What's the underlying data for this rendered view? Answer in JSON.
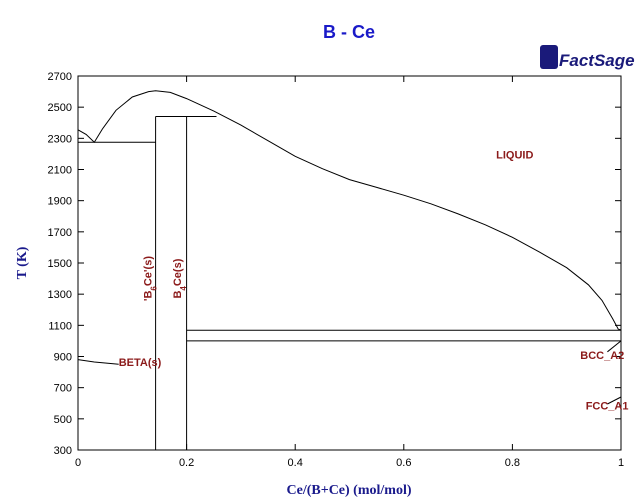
{
  "chart_data": {
    "type": "line",
    "title": "B - Ce",
    "xlabel": "Ce/(B+Ce) (mol/mol)",
    "ylabel": "T (K)",
    "xlim": [
      0,
      1
    ],
    "ylim": [
      300,
      2700
    ],
    "x_ticks": [
      "0",
      "0.2",
      "0.4",
      "0.6",
      "0.8",
      "1"
    ],
    "y_ticks": [
      "300",
      "500",
      "700",
      "900",
      "1100",
      "1300",
      "1500",
      "1700",
      "1900",
      "2100",
      "2300",
      "2500",
      "2700"
    ],
    "x_tick_values": [
      0,
      0.2,
      0.4,
      0.6,
      0.8,
      1
    ],
    "y_tick_values": [
      300,
      500,
      700,
      900,
      1100,
      1300,
      1500,
      1700,
      1900,
      2100,
      2300,
      2500,
      2700
    ],
    "logo": "FactSage",
    "phase_labels": [
      {
        "text": "LIQUID",
        "x": 0.77,
        "T": 2170,
        "angle": 0
      },
      {
        "text": "'B",
        "x": 0.135,
        "T": 1400,
        "angle": -90,
        "subscript": "6",
        "rest": "Ce'(s)"
      },
      {
        "text": "B",
        "x": 0.19,
        "T": 1400,
        "angle": -90,
        "subscript": "4",
        "rest": "Ce(s)"
      },
      {
        "text": "BETA(s)",
        "x": 0.075,
        "T": 840,
        "angle": 0
      },
      {
        "text": "BCC_A2",
        "x": 0.925,
        "T": 885,
        "angle": 0
      },
      {
        "text": "FCC_A1",
        "x": 0.935,
        "T": 560,
        "angle": 0
      }
    ],
    "series": [
      {
        "points": [
          [
            0.0,
            2355
          ],
          [
            0.015,
            2325
          ],
          [
            0.03,
            2275
          ],
          [
            0.045,
            2360
          ],
          [
            0.07,
            2480
          ],
          [
            0.1,
            2565
          ],
          [
            0.13,
            2600
          ],
          [
            0.143,
            2605
          ],
          [
            0.17,
            2595
          ],
          [
            0.2,
            2555
          ],
          [
            0.25,
            2475
          ],
          [
            0.3,
            2385
          ],
          [
            0.35,
            2285
          ],
          [
            0.4,
            2185
          ],
          [
            0.45,
            2105
          ],
          [
            0.5,
            2035
          ],
          [
            0.55,
            1985
          ],
          [
            0.6,
            1935
          ],
          [
            0.65,
            1880
          ],
          [
            0.7,
            1815
          ],
          [
            0.75,
            1745
          ],
          [
            0.8,
            1665
          ],
          [
            0.85,
            1570
          ],
          [
            0.9,
            1470
          ],
          [
            0.94,
            1360
          ],
          [
            0.965,
            1260
          ],
          [
            0.985,
            1140
          ],
          [
            0.995,
            1075
          ],
          [
            1.0,
            1071
          ]
        ]
      },
      {
        "points": [
          [
            0.0,
            2275
          ],
          [
            0.143,
            2275
          ]
        ]
      },
      {
        "points": [
          [
            0.143,
            2440
          ],
          [
            0.255,
            2440
          ]
        ]
      },
      {
        "points": [
          [
            0.143,
            300
          ],
          [
            0.143,
            2440
          ]
        ]
      },
      {
        "points": [
          [
            0.2,
            300
          ],
          [
            0.2,
            2440
          ]
        ]
      },
      {
        "points": [
          [
            0.2,
            1068
          ],
          [
            1.0,
            1068
          ]
        ]
      },
      {
        "points": [
          [
            0.2,
            1000
          ],
          [
            1.0,
            1000
          ]
        ]
      },
      {
        "points": [
          [
            0.0,
            880
          ],
          [
            0.03,
            865
          ],
          [
            0.075,
            850
          ]
        ]
      },
      {
        "points": [
          [
            0.975,
            930
          ],
          [
            1.0,
            1000
          ]
        ]
      },
      {
        "points": [
          [
            0.975,
            595
          ],
          [
            1.0,
            640
          ]
        ]
      }
    ]
  }
}
